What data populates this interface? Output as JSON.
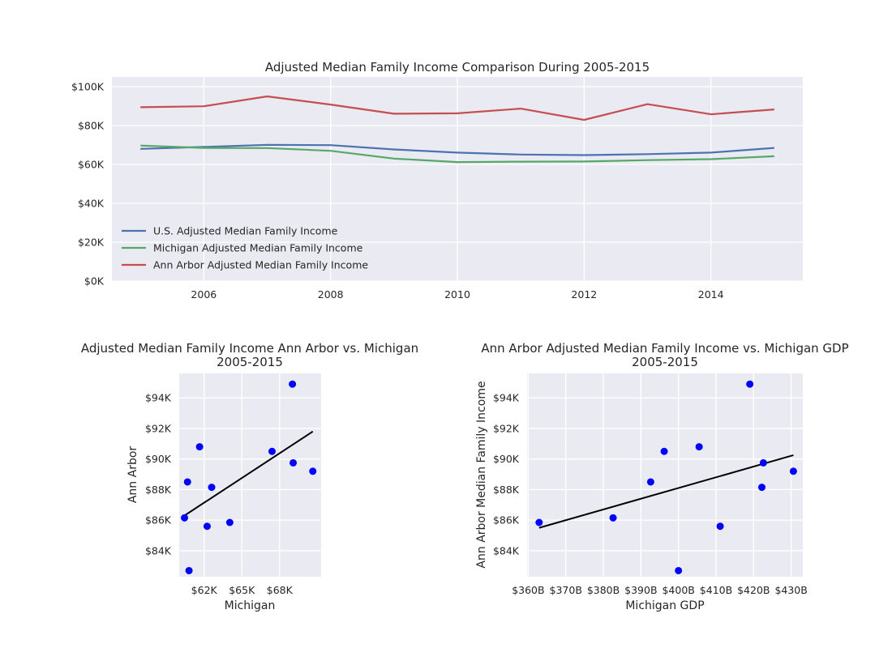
{
  "chart_data": [
    {
      "type": "line",
      "title": "Adjusted Median Family Income Comparison During 2005-2015",
      "xlabel": "",
      "ylabel": "",
      "x": [
        2005,
        2006,
        2007,
        2008,
        2009,
        2010,
        2011,
        2012,
        2013,
        2014,
        2015
      ],
      "xlim": [
        2004.55,
        2015.45
      ],
      "ylim": [
        0,
        105000
      ],
      "xticks": [
        2006,
        2008,
        2010,
        2012,
        2014
      ],
      "xtick_labels": [
        "2006",
        "2008",
        "2010",
        "2012",
        "2014"
      ],
      "yticks": [
        0,
        20000,
        40000,
        60000,
        80000,
        100000
      ],
      "ytick_labels": [
        "$0K",
        "$20K",
        "$40K",
        "$60K",
        "$80K",
        "$100K"
      ],
      "grid": true,
      "legend_position": "lower-left",
      "series": [
        {
          "name": "U.S. Adjusted Median Family Income",
          "color": "#4c72b0",
          "values": [
            68000,
            69000,
            70100,
            69900,
            67700,
            66100,
            65100,
            64800,
            65300,
            66100,
            68500
          ]
        },
        {
          "name": "Michigan Adjusted Median Family Income",
          "color": "#55a868",
          "values": [
            69700,
            68500,
            68400,
            67000,
            63000,
            61200,
            61400,
            61500,
            62200,
            62700,
            64200
          ]
        },
        {
          "name": "Ann Arbor Adjusted Median Family Income",
          "color": "#c44e52",
          "values": [
            89400,
            89900,
            95000,
            90800,
            86100,
            86300,
            88700,
            82900,
            91000,
            85800,
            88300
          ]
        }
      ]
    },
    {
      "type": "scatter",
      "title": "Adjusted Median Family Income Ann Arbor vs. Michigan",
      "subtitle": "2005-2015",
      "xlabel": "Michigan",
      "ylabel": "Ann Arbor",
      "xlim": [
        60850,
        70250
      ],
      "ylim": [
        82300,
        95600
      ],
      "xticks": [
        62500,
        65000,
        67500
      ],
      "xtick_labels": [
        "$62K",
        "$65K",
        "$68K"
      ],
      "yticks": [
        84000,
        86000,
        88000,
        90000,
        92000,
        94000
      ],
      "ytick_labels": [
        "$84K",
        "$86K",
        "$88K",
        "$90K",
        "$92K",
        "$94K"
      ],
      "grid": true,
      "point_color": "#0000ff",
      "fit_color": "#000000",
      "points": [
        {
          "x": 69700,
          "y": 89200
        },
        {
          "x": 68400,
          "y": 89750
        },
        {
          "x": 68350,
          "y": 94900
        },
        {
          "x": 67000,
          "y": 90500
        },
        {
          "x": 63000,
          "y": 88150
        },
        {
          "x": 61200,
          "y": 86150
        },
        {
          "x": 61400,
          "y": 88500
        },
        {
          "x": 61500,
          "y": 82700
        },
        {
          "x": 62200,
          "y": 90800
        },
        {
          "x": 62700,
          "y": 85600
        },
        {
          "x": 64200,
          "y": 85850
        }
      ],
      "fit_line": {
        "x": [
          61200,
          69700
        ],
        "y": [
          86300,
          91800
        ]
      }
    },
    {
      "type": "scatter",
      "title": "Ann Arbor Adjusted Median Family Income vs. Michigan GDP",
      "subtitle": "2005-2015",
      "xlabel": "Michigan GDP",
      "ylabel": "Ann Arbor Median Family Income",
      "xlim": [
        359700,
        433100
      ],
      "ylim": [
        82300,
        95600
      ],
      "xticks": [
        360000,
        370000,
        380000,
        390000,
        400000,
        410000,
        420000,
        430000
      ],
      "xtick_labels": [
        "$360B",
        "$370B",
        "$380B",
        "$390B",
        "$400B",
        "$410B",
        "$420B",
        "$430B"
      ],
      "yticks": [
        84000,
        86000,
        88000,
        90000,
        92000,
        94000
      ],
      "ytick_labels": [
        "$84K",
        "$86K",
        "$88K",
        "$90K",
        "$92K",
        "$94K"
      ],
      "grid": true,
      "point_color": "#0000ff",
      "fit_color": "#000000",
      "points": [
        {
          "x": 362900,
          "y": 85850
        },
        {
          "x": 382600,
          "y": 86150
        },
        {
          "x": 392600,
          "y": 88500
        },
        {
          "x": 396200,
          "y": 90500
        },
        {
          "x": 400000,
          "y": 82700
        },
        {
          "x": 405500,
          "y": 90800
        },
        {
          "x": 411100,
          "y": 85600
        },
        {
          "x": 419000,
          "y": 94900
        },
        {
          "x": 422200,
          "y": 88150
        },
        {
          "x": 422600,
          "y": 89750
        },
        {
          "x": 430600,
          "y": 89200
        }
      ],
      "fit_line": {
        "x": [
          362900,
          430600
        ],
        "y": [
          85500,
          90250
        ]
      }
    }
  ]
}
